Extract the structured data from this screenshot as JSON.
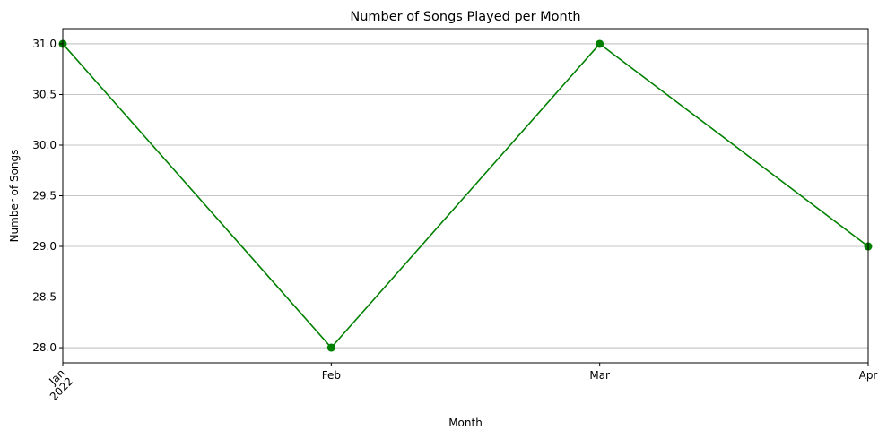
{
  "chart_data": {
    "type": "line",
    "title": "Number of Songs Played per Month",
    "xlabel": "Month",
    "ylabel": "Number of Songs",
    "categories": [
      "Jan\n2022",
      "Feb",
      "Mar",
      "Apr"
    ],
    "series": [
      {
        "values": [
          31,
          28,
          31,
          29
        ],
        "color": "#008000",
        "marker": "circle"
      }
    ],
    "ylim": [
      27.85,
      31.15
    ],
    "yticks": [
      "28.0",
      "28.5",
      "29.0",
      "29.5",
      "30.0",
      "30.5",
      "31.0"
    ],
    "grid": "y-major",
    "x_tick_rotation": 45
  }
}
